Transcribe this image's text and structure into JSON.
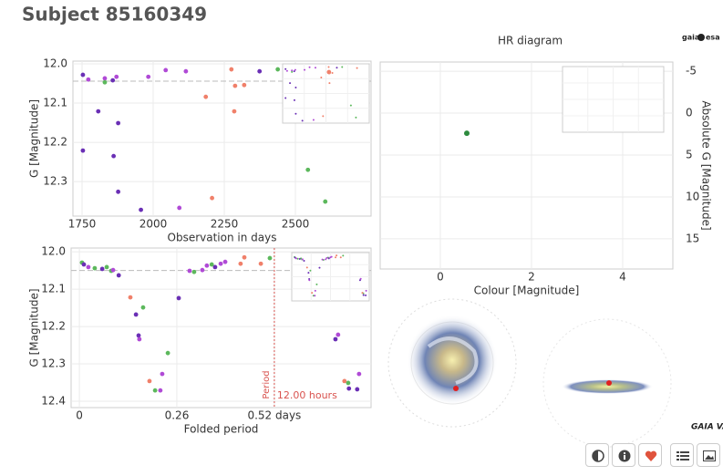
{
  "header": {
    "title": "Subject 85160349",
    "logos": [
      "gaia",
      "esa",
      "GAIA VARI"
    ]
  },
  "chart_data": [
    {
      "type": "scatter",
      "xlabel": "Observation in days",
      "ylabel": "G [Magnitude]",
      "xlim": [
        1718,
        2766
      ],
      "ylim": [
        11.993,
        12.388
      ],
      "y_inverted": true,
      "grid": true,
      "xticks": [
        1750,
        2000,
        2250,
        2500
      ],
      "yticks": [
        {
          "value": 12,
          "label": "12.0"
        },
        12.1,
        12.2,
        12.3
      ],
      "ref_line": 12.044,
      "series": [
        {
          "color": "#6a2fb5",
          "x": [
            1753,
            1753,
            1807,
            1858,
            1861,
            1877,
            1877,
            1957,
            2374
          ],
          "values": [
            12.028,
            12.221,
            12.121,
            12.042,
            12.235,
            12.151,
            12.326,
            12.372,
            12.019
          ]
        },
        {
          "color": "#b04ad6",
          "x": [
            1772,
            1830,
            1871,
            1983,
            2044,
            2092,
            2115
          ],
          "values": [
            12.04,
            12.037,
            12.033,
            12.033,
            12.016,
            12.367,
            12.019
          ]
        },
        {
          "color": "#f0806a",
          "x": [
            2185,
            2207,
            2275,
            2288,
            2285,
            2320,
            2618
          ],
          "values": [
            12.084,
            12.342,
            12.014,
            12.056,
            12.121,
            12.054,
            12.021
          ]
        },
        {
          "color": "#5cb85c",
          "x": [
            1830,
            2438,
            2544,
            2605
          ],
          "values": [
            12.047,
            12.014,
            12.27,
            12.351
          ]
        }
      ]
    },
    {
      "type": "scatter",
      "xlabel": "Folded period",
      "ylabel": "G [Magnitude]",
      "xlim": [
        -0.022,
        0.778
      ],
      "ylim": [
        11.99,
        12.417
      ],
      "y_inverted": true,
      "grid": true,
      "xticks": [
        0,
        0.26,
        {
          "value": 0.52,
          "label": "0.52 days"
        }
      ],
      "yticks": [
        {
          "value": 12,
          "label": "12.0"
        },
        12.1,
        12.2,
        12.3,
        12.4
      ],
      "ref_line": 12.05,
      "vline": 0.52,
      "vline_color": "#d9534f",
      "annotations": [
        "Period",
        "12.00 hours"
      ],
      "series": [
        {
          "color": "#5cb85c",
          "x": [
            0.007,
            0.041,
            0.073,
            0.085,
            0.17,
            0.202,
            0.236,
            0.306,
            0.353,
            0.508,
            0.717
          ],
          "values": [
            12.029,
            12.044,
            12.041,
            12.051,
            12.149,
            12.371,
            12.271,
            12.054,
            12.034,
            12.017,
            12.351
          ]
        },
        {
          "color": "#6a2fb5",
          "x": [
            0.012,
            0.061,
            0.105,
            0.151,
            0.158,
            0.265,
            0.362,
            0.683,
            0.719,
            0.741
          ],
          "values": [
            12.034,
            12.046,
            12.063,
            12.168,
            12.224,
            12.124,
            12.041,
            12.234,
            12.366,
            12.368
          ]
        },
        {
          "color": "#b04ad6",
          "x": [
            0.024,
            0.09,
            0.16,
            0.216,
            0.221,
            0.294,
            0.328,
            0.34,
            0.377,
            0.389,
            0.69,
            0.746
          ],
          "values": [
            12.041,
            12.049,
            12.234,
            12.371,
            12.327,
            12.051,
            12.049,
            12.037,
            12.032,
            12.027,
            12.222,
            12.327
          ]
        },
        {
          "color": "#f0806a",
          "x": [
            0.136,
            0.187,
            0.43,
            0.44,
            0.484,
            0.707
          ],
          "values": [
            12.122,
            12.346,
            12.032,
            12.015,
            12.032,
            12.346
          ]
        }
      ]
    },
    {
      "type": "scatter",
      "title": "HR diagram",
      "xlabel": "Colour [Magnitude]",
      "ylabel": "Absolute G [Magnitude]",
      "xlim": [
        -1.32,
        5.1
      ],
      "ylim": [
        -6.1,
        18.6
      ],
      "y_inverted": true,
      "y_axis_side": "right",
      "grid": true,
      "xticks": [
        0,
        2,
        4
      ],
      "yticks": [
        -5,
        0,
        5,
        10,
        15
      ],
      "series": [
        {
          "color": "#2e8b3e",
          "x": [
            0.58
          ],
          "values": [
            2.4
          ]
        }
      ]
    }
  ]
}
